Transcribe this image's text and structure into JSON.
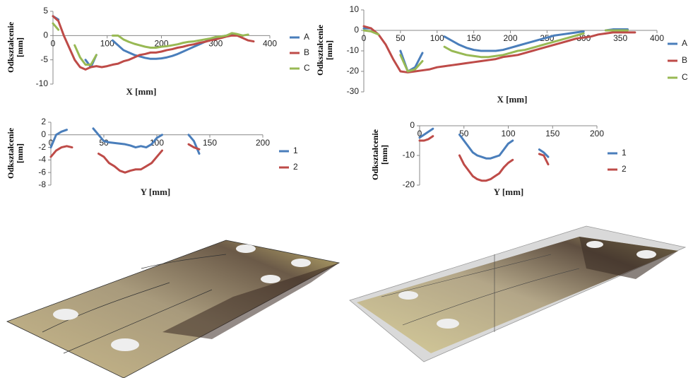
{
  "chart_data": [
    {
      "type": "line",
      "ylabel": "Odkształcenie [mm]",
      "xlabel": "X [mm]",
      "legend": "right",
      "xlim": [
        0,
        400
      ],
      "xticks": [
        0,
        100,
        200,
        300,
        400
      ],
      "ylim": [
        -10,
        5
      ],
      "yticks": [
        -10,
        -5,
        0,
        5
      ],
      "x": [
        0,
        10,
        20,
        30,
        40,
        50,
        60,
        70,
        80,
        90,
        100,
        110,
        120,
        130,
        140,
        150,
        160,
        170,
        180,
        190,
        200,
        210,
        220,
        230,
        240,
        250,
        260,
        270,
        280,
        290,
        300,
        310,
        320,
        330,
        340,
        350,
        360,
        370
      ],
      "series": [
        {
          "name": "A",
          "color": "#4a7ebb",
          "values": [
            4,
            3.3,
            null,
            null,
            null,
            null,
            -5,
            -6.5,
            -4,
            null,
            null,
            -1,
            -2,
            -3,
            -3.5,
            -4,
            -4.3,
            -4.6,
            -4.8,
            -4.8,
            -4.7,
            -4.5,
            -4.2,
            -3.8,
            -3.3,
            -2.8,
            -2.3,
            -1.8,
            -1.3,
            -0.8,
            -0.4,
            -0.2,
            0,
            0.3,
            0.2,
            0,
            null,
            null
          ]
        },
        {
          "name": "B",
          "color": "#be4b48",
          "values": [
            4,
            3,
            0,
            -2.5,
            -5,
            -6.5,
            -7,
            -6.5,
            -6.3,
            -6.5,
            -6.3,
            -6,
            -5.8,
            -5.3,
            -5,
            -4.5,
            -4,
            -3.8,
            -3.5,
            -3.5,
            -3.3,
            -3,
            -2.8,
            -2.5,
            -2.3,
            -2,
            -1.8,
            -1.5,
            -1.3,
            -1,
            -0.8,
            -0.5,
            -0.2,
            0,
            0,
            -0.5,
            -1,
            -1.2
          ]
        },
        {
          "name": "C",
          "color": "#98b954",
          "values": [
            2.5,
            1.2,
            null,
            null,
            -2,
            -4.5,
            -6,
            -6,
            -4,
            null,
            null,
            0,
            0,
            -0.8,
            -1.3,
            -1.7,
            -2,
            -2.3,
            -2.5,
            -2.5,
            -2.3,
            -2.2,
            -2,
            -1.8,
            -1.5,
            -1.3,
            -1.2,
            -1,
            -0.8,
            -0.6,
            -0.3,
            -0.2,
            0,
            0.5,
            0.3,
            0,
            0.2,
            null
          ]
        }
      ]
    },
    {
      "type": "line",
      "ylabel": "Odkształcenie [mm]",
      "xlabel": "X [mm]",
      "legend": "right",
      "xlim": [
        0,
        400
      ],
      "xticks": [
        0,
        50,
        100,
        150,
        200,
        250,
        300,
        350,
        400
      ],
      "ylim": [
        -30,
        10
      ],
      "yticks": [
        -30,
        -20,
        -10,
        0,
        10
      ],
      "x": [
        0,
        10,
        20,
        30,
        40,
        50,
        60,
        70,
        80,
        90,
        100,
        110,
        120,
        130,
        140,
        150,
        160,
        170,
        180,
        190,
        200,
        210,
        220,
        230,
        240,
        250,
        260,
        270,
        280,
        290,
        300,
        310,
        320,
        330,
        340,
        350,
        360,
        370
      ],
      "series": [
        {
          "name": "A",
          "color": "#4a7ebb",
          "values": [
            1,
            1,
            null,
            null,
            null,
            -10,
            -20,
            -18,
            -11,
            null,
            null,
            -3,
            -5,
            -7,
            -8.5,
            -9.5,
            -10,
            -10,
            -10,
            -9.5,
            -8.5,
            -7.5,
            -6.5,
            -5.5,
            -4.5,
            -3.5,
            -2.5,
            -2,
            -1.5,
            -1,
            -0.5,
            null,
            null,
            0,
            0.5,
            0.5,
            0.5,
            null
          ]
        },
        {
          "name": "B",
          "color": "#be4b48",
          "values": [
            2,
            1,
            -2,
            -7,
            -14,
            -20,
            -20.5,
            -20,
            -19.5,
            -19,
            -18,
            -17.5,
            -17,
            -16.5,
            -16,
            -15.5,
            -15,
            -14.5,
            -14,
            -13,
            -12.5,
            -12,
            -11,
            -10,
            -9,
            -8,
            -7,
            -6,
            -5,
            -4,
            -3.5,
            -3,
            -2,
            -1.5,
            -1,
            -1,
            -1,
            -1
          ]
        },
        {
          "name": "C",
          "color": "#98b954",
          "values": [
            0,
            -0.5,
            -2,
            null,
            null,
            -12,
            -20,
            -19,
            -15,
            null,
            null,
            -8,
            -10,
            -11,
            -12,
            -12.5,
            -13,
            -13,
            -12.5,
            -12,
            -11,
            -10,
            -9.5,
            -8.5,
            -7.5,
            -6.5,
            -5.5,
            -4.5,
            -3.5,
            -2.5,
            -1.5,
            null,
            null,
            0,
            0,
            0,
            0,
            null
          ]
        }
      ]
    },
    {
      "type": "line",
      "ylabel": "Odkształcenie [mm]",
      "xlabel": "Y [mm]",
      "legend": "right",
      "xlim": [
        0,
        200
      ],
      "xticks": [
        0,
        50,
        100,
        150,
        200
      ],
      "ylim": [
        -8,
        2
      ],
      "yticks": [
        -8,
        -6,
        -4,
        -2,
        0,
        2
      ],
      "x": [
        0,
        5,
        10,
        15,
        20,
        25,
        30,
        35,
        40,
        45,
        50,
        55,
        60,
        65,
        70,
        75,
        80,
        85,
        90,
        95,
        100,
        105,
        110,
        115,
        120,
        125,
        130,
        135,
        140,
        145
      ],
      "series": [
        {
          "name": "1",
          "color": "#4a7ebb",
          "values": [
            -2,
            0,
            0.5,
            0.8,
            null,
            null,
            null,
            null,
            1,
            0,
            -1,
            -1.2,
            -1.3,
            -1.4,
            -1.5,
            -1.7,
            -2,
            -1.8,
            -2,
            -1.5,
            -0.5,
            0,
            null,
            null,
            null,
            null,
            0,
            -1,
            -3,
            null
          ]
        },
        {
          "name": "2",
          "color": "#be4b48",
          "values": [
            -3.5,
            -2.5,
            -2,
            -1.8,
            -2,
            null,
            null,
            null,
            null,
            -3,
            -3.5,
            -4.5,
            -5,
            -5.7,
            -6,
            -5.7,
            -5.5,
            -5.5,
            -5,
            -4.5,
            -3.5,
            -2.5,
            null,
            null,
            null,
            null,
            -1.5,
            -2,
            -2.3,
            null
          ]
        }
      ]
    },
    {
      "type": "line",
      "ylabel": "Odkształcenie [mm]",
      "xlabel": "Y [mm]",
      "legend": "right",
      "xlim": [
        0,
        200
      ],
      "xticks": [
        0,
        50,
        100,
        150,
        200
      ],
      "ylim": [
        -20,
        0
      ],
      "yticks": [
        -20,
        -10,
        0
      ],
      "x": [
        0,
        5,
        10,
        15,
        20,
        25,
        30,
        35,
        40,
        45,
        50,
        55,
        60,
        65,
        70,
        75,
        80,
        85,
        90,
        95,
        100,
        105,
        110,
        115,
        120,
        125,
        130,
        135,
        140,
        145
      ],
      "series": [
        {
          "name": "1",
          "color": "#4a7ebb",
          "values": [
            -4,
            -3,
            -2,
            -1,
            null,
            null,
            null,
            null,
            null,
            -3,
            -5,
            -7,
            -9,
            -10,
            -10.5,
            -11,
            -11,
            -10.5,
            -10,
            -8,
            -6,
            -5,
            null,
            null,
            null,
            null,
            null,
            -8,
            -9,
            -10.5
          ]
        },
        {
          "name": "2",
          "color": "#be4b48",
          "values": [
            -5,
            -5,
            -4.5,
            -3.5,
            null,
            null,
            null,
            null,
            null,
            -10,
            -13,
            -15,
            -17,
            -18,
            -18.5,
            -18.5,
            -18,
            -17,
            -16,
            -14,
            -12.5,
            -11.5,
            null,
            null,
            null,
            null,
            null,
            -9.5,
            -10,
            -13
          ]
        }
      ]
    }
  ]
}
